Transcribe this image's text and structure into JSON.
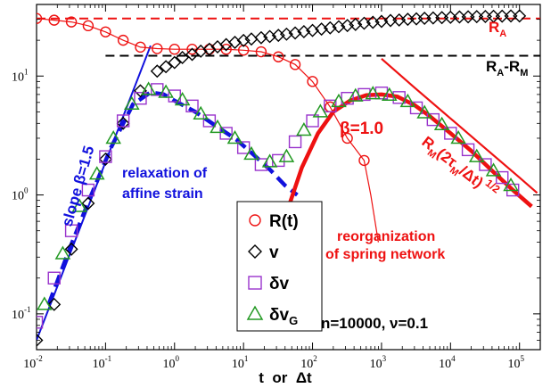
{
  "chart_data": {
    "type": "scatter",
    "xscale": "log",
    "yscale": "log",
    "xlim": [
      0.01,
      200000
    ],
    "ylim": [
      0.05,
      40
    ],
    "grid": false,
    "legend_position": "center",
    "xlabel": "t  or  Δt",
    "x_ticks": [
      {
        "value": 0.01,
        "base": "10",
        "exp": "-2"
      },
      {
        "value": 0.1,
        "base": "10",
        "exp": "-1"
      },
      {
        "value": 1,
        "base": "10",
        "exp": "0"
      },
      {
        "value": 10,
        "base": "10",
        "exp": "1"
      },
      {
        "value": 100,
        "base": "10",
        "exp": "2"
      },
      {
        "value": 1000,
        "base": "10",
        "exp": "3"
      },
      {
        "value": 10000,
        "base": "10",
        "exp": "4"
      },
      {
        "value": 100000,
        "base": "10",
        "exp": "5"
      }
    ],
    "y_ticks": [
      {
        "value": 0.1,
        "base": "10",
        "exp": "-1"
      },
      {
        "value": 1,
        "base": "10",
        "exp": "0"
      },
      {
        "value": 10,
        "base": "10",
        "exp": "1"
      }
    ],
    "series": [
      {
        "name": "R(t)",
        "label_base": "R(t)",
        "label_sub": "",
        "marker": "circle",
        "color": "#ee1111",
        "x": [
          0.01,
          0.018,
          0.032,
          0.056,
          0.1,
          0.18,
          0.32,
          0.56,
          1,
          1.8,
          3.2,
          5.6,
          10,
          18,
          32,
          56,
          100,
          180,
          320,
          560
        ],
        "y": [
          30.5,
          29.5,
          28.5,
          26.5,
          23.5,
          20,
          17.5,
          17,
          16.8,
          16.8,
          16.8,
          16.8,
          16.5,
          16,
          14.5,
          12.5,
          9,
          5.5,
          3,
          1.95
        ]
      },
      {
        "name": "v",
        "label_base": "v",
        "label_sub": "",
        "marker": "diamond",
        "color": "#000000",
        "x": [
          0.01,
          0.018,
          0.032,
          0.056,
          0.1,
          0.18,
          0.32,
          0.56,
          0.75,
          1,
          1.3,
          1.8,
          2.4,
          3.2,
          4.2,
          5.6,
          7.5,
          10,
          13,
          18,
          24,
          32,
          42,
          56,
          75,
          100,
          135,
          180,
          240,
          320,
          420,
          560,
          750,
          1000,
          1350,
          1800,
          2400,
          3200,
          4200,
          5600,
          7500,
          10000,
          13500,
          18000,
          24000,
          32000,
          42000,
          56000,
          75000,
          100000
        ],
        "y": [
          0.06,
          0.12,
          0.35,
          0.85,
          2,
          4,
          7.5,
          11,
          12,
          13,
          14.3,
          15.2,
          16.2,
          16.8,
          17.6,
          18.4,
          19.2,
          19.9,
          20.5,
          21,
          21.5,
          22,
          22.5,
          23,
          23.6,
          24.2,
          24.8,
          25.4,
          26,
          26.6,
          27.2,
          27.8,
          28.3,
          28.8,
          29.3,
          29.6,
          30,
          30.3,
          30.6,
          30.8,
          31,
          31.2,
          31.4,
          31.5,
          31.6,
          31.7,
          31.8,
          31.9,
          32,
          32
        ]
      },
      {
        "name": "δv",
        "label_base": "δv",
        "label_sub": "",
        "marker": "square",
        "color": "#9933cc",
        "x": [
          0.01,
          0.018,
          0.032,
          0.056,
          0.1,
          0.18,
          0.32,
          0.56,
          1,
          1.8,
          3.2,
          5.6,
          10,
          18,
          32,
          56,
          100,
          180,
          320,
          560,
          1000,
          1800,
          3200,
          5600,
          10000,
          18000,
          32000,
          56000,
          80000
        ],
        "y": [
          0.085,
          0.2,
          0.5,
          1.1,
          2.1,
          4.2,
          6.5,
          7.7,
          6.8,
          5.6,
          4.2,
          3.3,
          2.5,
          1.8,
          1.95,
          2.8,
          4.2,
          5.6,
          6.5,
          7,
          7.2,
          6.6,
          5.4,
          4.3,
          3.3,
          2.4,
          1.8,
          1.4,
          1.1
        ]
      },
      {
        "name": "δvG",
        "label_base": "δv",
        "label_sub": "G",
        "marker": "triangle",
        "color": "#229922",
        "x": [
          0.013,
          0.024,
          0.042,
          0.075,
          0.13,
          0.24,
          0.42,
          0.75,
          1.3,
          2.4,
          4.2,
          7.5,
          13,
          24,
          42,
          75,
          130,
          240,
          420,
          750,
          1300,
          2400,
          4200,
          7500,
          13000,
          24000,
          42000,
          75000
        ],
        "y": [
          0.12,
          0.32,
          0.8,
          1.5,
          3,
          5.8,
          7.7,
          7.3,
          6.3,
          4.8,
          3.7,
          3,
          2.2,
          1.9,
          2.1,
          3.5,
          5,
          6.1,
          6.8,
          7.1,
          6.9,
          6.1,
          4.9,
          3.9,
          3,
          2.1,
          1.6,
          1.2
        ]
      }
    ],
    "reference_lines": [
      {
        "label": "R_A",
        "label_base": "R",
        "label_sub": "A",
        "y": 30.5,
        "color": "#ee1111",
        "style": "dashed"
      },
      {
        "label": "R_A-R_M",
        "label_base": "R",
        "label_sub1": "A",
        "label_mid": "-R",
        "label_sub2": "M",
        "y": 14.8,
        "x_start": 0.1,
        "color": "#000000",
        "style": "dashed"
      }
    ],
    "fit_lines": [
      {
        "id": "slope-1.5",
        "color": "#1111dd",
        "style": "solid",
        "x": [
          0.01,
          0.45
        ],
        "y": [
          0.06,
          18
        ]
      },
      {
        "id": "blue-dashed-fit",
        "color": "#1111dd",
        "style": "dashed",
        "x": [
          0.015,
          0.03,
          0.06,
          0.12,
          0.25,
          0.45,
          0.7,
          1,
          2,
          4,
          8,
          15,
          25,
          40,
          60
        ],
        "y": [
          0.12,
          0.35,
          0.95,
          2.5,
          5.8,
          7.3,
          7,
          6.2,
          5,
          3.8,
          2.9,
          2.1,
          1.6,
          1.2,
          1
        ]
      },
      {
        "id": "red-thick-fit",
        "color": "#ee1111",
        "style": "solid",
        "x": [
          40,
          70,
          120,
          200,
          350,
          600,
          1000,
          1700,
          3000,
          5000,
          10000,
          20000,
          40000,
          80000,
          150000
        ],
        "y": [
          0.65,
          1.7,
          3.3,
          5,
          6.2,
          6.9,
          7,
          6.7,
          5.7,
          4.6,
          3.3,
          2.35,
          1.6,
          1.1,
          0.8
        ]
      },
      {
        "id": "red-thin-fit",
        "color": "#ee1111",
        "style": "solid",
        "x": [
          1000,
          3000,
          10000,
          30000,
          100000,
          180000
        ],
        "y": [
          14,
          8,
          4.4,
          2.55,
          1.4,
          1.04
        ]
      }
    ],
    "annotations": {
      "slope_label": "slope β=1.5",
      "relax_line1": "relaxation of",
      "relax_line2": "affine strain",
      "beta_label": "β=1.0",
      "reorg_line1": "reorganization",
      "reorg_line2": "of spring network",
      "rm_base": "R",
      "rm_sub": "M",
      "rm_mid": "(2τ",
      "rm_sub2": "M",
      "rm_end": "/Δt)",
      "rm_exp": "1/2",
      "params": "n=10000, ν=0.1"
    }
  }
}
